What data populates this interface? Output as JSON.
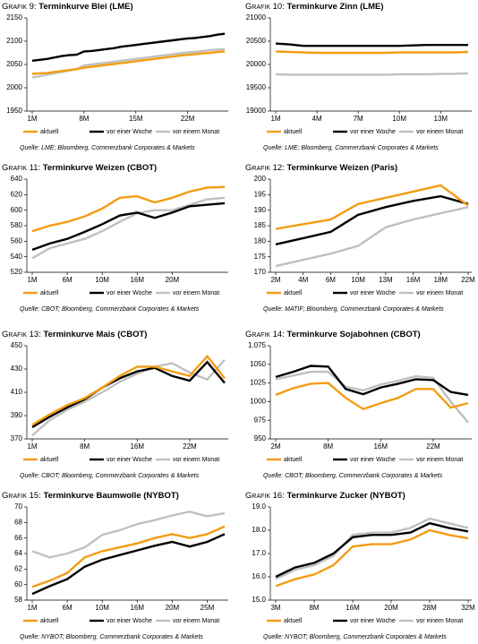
{
  "chart_data": [
    {
      "type": "line",
      "label": "Grafik 9:",
      "title": "Terminkurve Blei (LME)",
      "source": "Quelle: LME; Bloomberg, Commerzbank Corporates & Markets",
      "categories": [
        "1M",
        null,
        null,
        null,
        null,
        null,
        null,
        "8M",
        null,
        null,
        null,
        null,
        null,
        null,
        "15M",
        null,
        null,
        null,
        null,
        null,
        null,
        "22M",
        null,
        null,
        null,
        null,
        null
      ],
      "ylim": [
        1950,
        2150
      ],
      "yticks": [
        1950,
        2000,
        2050,
        2100,
        2150
      ],
      "series": [
        {
          "name": "aktuell",
          "color": "#f39c12",
          "values": [
            2030,
            2031,
            2032,
            2034,
            2036,
            2038,
            2040,
            2043,
            2045,
            2047,
            2049,
            2051,
            2053,
            2055,
            2057,
            2059,
            2061,
            2063,
            2065,
            2067,
            2069,
            2071,
            2072,
            2074,
            2075,
            2077,
            2078
          ]
        },
        {
          "name": "vor einer Woche",
          "color": "#000000",
          "values": [
            2058,
            2060,
            2062,
            2065,
            2068,
            2070,
            2071,
            2078,
            2079,
            2081,
            2083,
            2085,
            2088,
            2090,
            2092,
            2094,
            2096,
            2098,
            2100,
            2102,
            2104,
            2106,
            2107,
            2109,
            2111,
            2114,
            2116
          ]
        },
        {
          "name": "vor einem Monat",
          "color": "#c0c0c0",
          "values": [
            2022,
            2025,
            2028,
            2031,
            2034,
            2037,
            2040,
            2048,
            2050,
            2052,
            2054,
            2056,
            2058,
            2060,
            2062,
            2064,
            2066,
            2068,
            2070,
            2072,
            2074,
            2076,
            2077,
            2079,
            2081,
            2082,
            2083
          ]
        }
      ]
    },
    {
      "type": "line",
      "label": "Grafik 10:",
      "title": "Terminkurve Zinn (LME)",
      "source": "Quelle: LME; Bloomberg, Commerzbank Corporates & Markets",
      "categories": [
        "1M",
        null,
        null,
        "4M",
        null,
        null,
        "7M",
        null,
        null,
        "10M",
        null,
        null,
        "13M",
        null,
        null
      ],
      "ylim": [
        19000,
        21000
      ],
      "yticks": [
        19000,
        19500,
        20000,
        20500,
        21000
      ],
      "series": [
        {
          "name": "aktuell",
          "color": "#f39c12",
          "values": [
            20280,
            20270,
            20260,
            20250,
            20250,
            20250,
            20250,
            20250,
            20250,
            20260,
            20260,
            20260,
            20260,
            20260,
            20270
          ]
        },
        {
          "name": "vor einer Woche",
          "color": "#000000",
          "values": [
            20450,
            20430,
            20400,
            20400,
            20400,
            20400,
            20400,
            20400,
            20400,
            20400,
            20410,
            20420,
            20420,
            20420,
            20420
          ]
        },
        {
          "name": "vor einem Monat",
          "color": "#c0c0c0",
          "values": [
            19790,
            19780,
            19780,
            19780,
            19780,
            19780,
            19780,
            19780,
            19780,
            19790,
            19790,
            19790,
            19800,
            19800,
            19810
          ]
        }
      ]
    },
    {
      "type": "line",
      "label": "Grafik 11:",
      "title": "Terminkurve Weizen (CBOT)",
      "source": "Quelle: CBOT; Bloomberg, Commerzbank Corporates & Markets",
      "categories": [
        "1M",
        null,
        "6M",
        null,
        "10M",
        null,
        "16M",
        null,
        "20M",
        null,
        null,
        null
      ],
      "ylim": [
        520,
        640
      ],
      "yticks": [
        520,
        540,
        560,
        580,
        600,
        620,
        640
      ],
      "series": [
        {
          "name": "aktuell",
          "color": "#f39c12",
          "values": [
            573,
            580,
            585,
            592,
            602,
            616,
            618,
            610,
            616,
            624,
            629,
            630
          ]
        },
        {
          "name": "vor einer Woche",
          "color": "#000000",
          "values": [
            549,
            557,
            563,
            572,
            582,
            593,
            597,
            590,
            597,
            605,
            607,
            609
          ]
        },
        {
          "name": "vor einem Monat",
          "color": "#c0c0c0",
          "values": [
            538,
            551,
            557,
            563,
            573,
            585,
            596,
            600,
            600,
            607,
            614,
            616
          ]
        }
      ]
    },
    {
      "type": "line",
      "label": "Grafik 12:",
      "title": "Terminkurve Weizen (Paris)",
      "source": "Quelle: MATIF; Bloomberg, Commerzbank Corporates & Markets",
      "categories": [
        "2M",
        "4M",
        "6M",
        "10M",
        "13M",
        "16M",
        "18M",
        "22M"
      ],
      "ylim": [
        170,
        200
      ],
      "yticks": [
        170,
        175,
        180,
        185,
        190,
        195,
        200
      ],
      "series": [
        {
          "name": "aktuell",
          "color": "#f39c12",
          "values": [
            184,
            185.5,
            187,
            192,
            194,
            196,
            198,
            191.5
          ]
        },
        {
          "name": "vor einer Woche",
          "color": "#000000",
          "values": [
            179,
            181,
            183,
            188.5,
            191,
            193,
            194.5,
            192
          ]
        },
        {
          "name": "vor einem Monat",
          "color": "#c0c0c0",
          "values": [
            172,
            174,
            176,
            178.5,
            184.5,
            187,
            189,
            191
          ]
        }
      ]
    },
    {
      "type": "line",
      "label": "Grafik 13:",
      "title": "Terminkurve Mais (CBOT)",
      "source": "Quelle: CBOT; Bloomberg, Commerzbank Corporates & Markets",
      "categories": [
        "1M",
        null,
        null,
        "8M",
        null,
        null,
        "16M",
        null,
        null,
        "22M",
        null,
        null
      ],
      "ylim": [
        370,
        450
      ],
      "yticks": [
        370,
        390,
        410,
        430,
        450
      ],
      "series": [
        {
          "name": "aktuell",
          "color": "#f39c12",
          "values": [
            382,
            391,
            399,
            405,
            414,
            424,
            432,
            432,
            428,
            424,
            441,
            422
          ]
        },
        {
          "name": "vor einer Woche",
          "color": "#000000",
          "values": [
            380,
            389,
            397,
            404,
            414,
            422,
            428,
            431,
            424,
            420,
            436,
            418
          ]
        },
        {
          "name": "vor einem Monat",
          "color": "#c0c0c0",
          "values": [
            373,
            386,
            395,
            402,
            410,
            419,
            426,
            432,
            435,
            427,
            421,
            438
          ]
        }
      ]
    },
    {
      "type": "line",
      "label": "Grafik 14:",
      "title": "Terminkurve Sojabohnen (CBOT)",
      "source": "Quelle: CBOT; Bloomberg, Commerzbank Corporates & Markets",
      "categories": [
        "2M",
        null,
        null,
        "8M",
        null,
        null,
        "16M",
        null,
        null,
        "22M",
        null,
        null
      ],
      "ylim": [
        950,
        1075
      ],
      "yticks": [
        950,
        975,
        1000,
        1025,
        1050,
        {
          "value": 1075,
          "label": "1.075"
        }
      ],
      "series": [
        {
          "name": "aktuell",
          "color": "#f39c12",
          "values": [
            1009,
            1018,
            1024,
            1025,
            1005,
            990,
            998,
            1005,
            1017,
            1017,
            992,
            998
          ]
        },
        {
          "name": "vor einer Woche",
          "color": "#000000",
          "values": [
            1033,
            1040,
            1048,
            1047,
            1017,
            1010,
            1019,
            1024,
            1030,
            1029,
            1013,
            1009
          ]
        },
        {
          "name": "vor einem Monat",
          "color": "#c0c0c0",
          "values": [
            1030,
            1035,
            1040,
            1040,
            1020,
            1015,
            1023,
            1028,
            1034,
            1032,
            1000,
            972
          ]
        }
      ]
    },
    {
      "type": "line",
      "label": "Grafik 15:",
      "title": "Terminkurve Baumwolle (NYBOT)",
      "source": "Quelle: NYBOT; Bloomberg, Commerzbank Corporates & Markets",
      "categories": [
        "1M",
        null,
        "6M",
        null,
        "10M",
        null,
        "16M",
        null,
        "20M",
        null,
        "25M",
        null
      ],
      "ylim": [
        58,
        70
      ],
      "yticks": [
        58,
        60,
        62,
        64,
        66,
        68,
        70
      ],
      "series": [
        {
          "name": "aktuell",
          "color": "#f39c12",
          "values": [
            59.7,
            60.5,
            61.5,
            63.5,
            64.3,
            64.8,
            65.3,
            66,
            66.5,
            66,
            66.5,
            67.5
          ]
        },
        {
          "name": "vor einer Woche",
          "color": "#000000",
          "values": [
            58.8,
            59.8,
            60.7,
            62.3,
            63.2,
            63.8,
            64.4,
            65,
            65.5,
            64.9,
            65.5,
            66.5
          ]
        },
        {
          "name": "vor einem Monat",
          "color": "#c0c0c0",
          "values": [
            64.3,
            63.5,
            64,
            64.8,
            66.4,
            67,
            67.8,
            68.3,
            68.9,
            69.4,
            68.8,
            69.2
          ]
        }
      ]
    },
    {
      "type": "line",
      "label": "Grafik 16:",
      "title": "Terminkurve Zucker (NYBOT)",
      "source": "Quelle: NYBOT; Bloomberg, Commerzbank Corporates & Markets",
      "categories": [
        "3M",
        null,
        "8M",
        null,
        "16M",
        null,
        "20M",
        null,
        "28M",
        null,
        "32M"
      ],
      "ylim": [
        15,
        19
      ],
      "yticks": [
        {
          "value": 15,
          "label": "15.0"
        },
        {
          "value": 16,
          "label": "16.0"
        },
        {
          "value": 17,
          "label": "17.0"
        },
        {
          "value": 18,
          "label": "18.0"
        },
        {
          "value": 19,
          "label": "19.0"
        }
      ],
      "series": [
        {
          "name": "aktuell",
          "color": "#f39c12",
          "values": [
            15.6,
            15.9,
            16.1,
            16.5,
            17.3,
            17.4,
            17.4,
            17.6,
            18,
            17.8,
            17.65
          ]
        },
        {
          "name": "vor einer Woche",
          "color": "#000000",
          "values": [
            16,
            16.4,
            16.6,
            17,
            17.7,
            17.8,
            17.8,
            17.9,
            18.3,
            18.1,
            17.95
          ]
        },
        {
          "name": "vor einem Monat",
          "color": "#c0c0c0",
          "values": [
            15.9,
            16.3,
            16.5,
            16.9,
            17.8,
            17.9,
            17.9,
            18.1,
            18.5,
            18.3,
            18.1
          ]
        }
      ]
    }
  ]
}
